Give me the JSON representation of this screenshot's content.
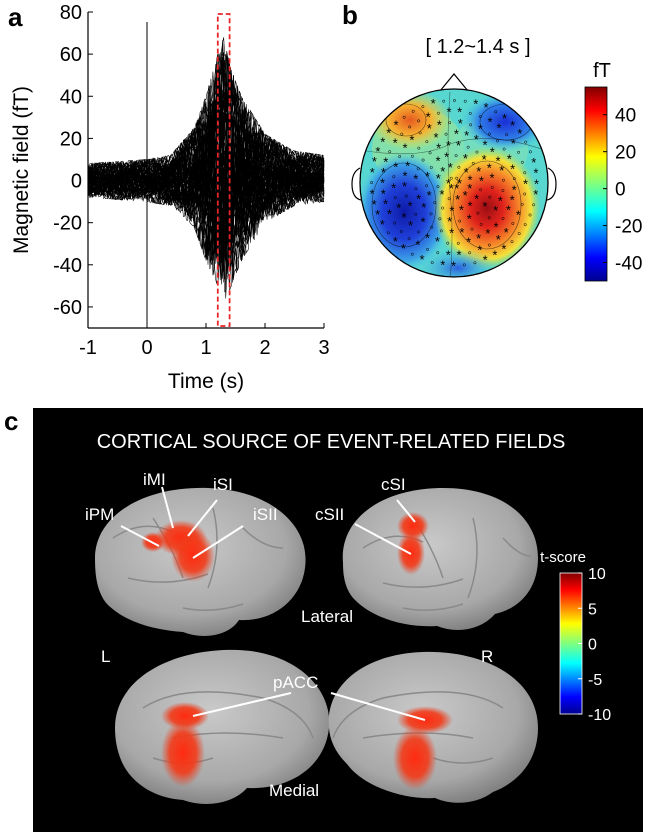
{
  "panel_a": {
    "letter": "a",
    "chart_data": {
      "type": "line",
      "title": "",
      "xlabel": "Time (s)",
      "ylabel": "Magnetic field (fT)",
      "xlim": [
        -1,
        3
      ],
      "ylim": [
        -70,
        80
      ],
      "xticks": [
        "-1",
        "0",
        "1",
        "2",
        "3"
      ],
      "xtick_values": [
        -1,
        0,
        1,
        2,
        3
      ],
      "yticks": [
        "80",
        "60",
        "40",
        "20",
        "0",
        "-20",
        "-40",
        "-60"
      ],
      "ytick_values": [
        80,
        60,
        40,
        20,
        0,
        -20,
        -40,
        -60
      ],
      "stimulus_onset_s": 0,
      "highlight_window_s": [
        1.2,
        1.4
      ],
      "highlight_color": "#e8262a",
      "series": [
        {
          "x": [
            -1,
            -0.5,
            0,
            0.4,
            0.8,
            1.0,
            1.2,
            1.3,
            1.4,
            1.6,
            2.0,
            2.5,
            3.0
          ],
          "upper": [
            8,
            9,
            10,
            12,
            25,
            40,
            60,
            68,
            55,
            40,
            22,
            14,
            12
          ],
          "lower": [
            -8,
            -9,
            -10,
            -12,
            -22,
            -38,
            -50,
            -58,
            -52,
            -38,
            -20,
            -12,
            -10
          ]
        }
      ],
      "grid": false
    }
  },
  "panel_b": {
    "letter": "b",
    "window_label": "[ 1.2~1.4 s ]",
    "colorbar": {
      "unit": "fT",
      "ticks": [
        "40",
        "20",
        "0",
        "-20",
        "-40"
      ],
      "tick_values": [
        40,
        20,
        0,
        -20,
        -40
      ],
      "range": [
        -50,
        55
      ]
    }
  },
  "panel_c": {
    "letter": "c",
    "title": "CORTICAL SOURCE OF EVENT-RELATED FIELDS",
    "labels": {
      "ipm": "iPM",
      "imi": "iMI",
      "isi": "iSI",
      "isii": "iSII",
      "csi": "cSI",
      "csii": "cSII",
      "lateral": "Lateral",
      "medial": "Medial",
      "left": "L",
      "right": "R",
      "pacc": "pACC"
    },
    "colorbar": {
      "title": "t-score",
      "ticks": [
        "10",
        "5",
        "0",
        "-5",
        "-10"
      ],
      "tick_values": [
        10,
        5,
        0,
        -5,
        -10
      ]
    }
  }
}
